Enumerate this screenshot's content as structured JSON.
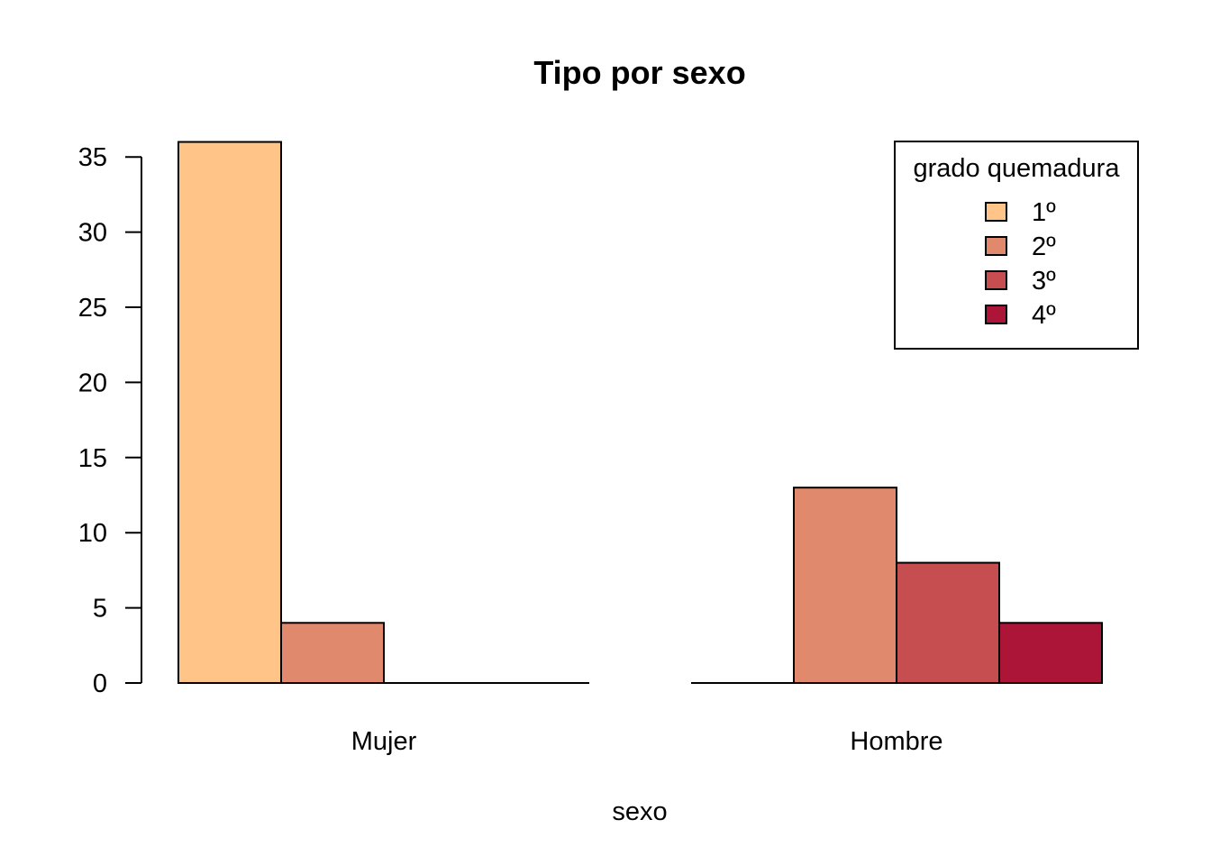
{
  "chart_data": {
    "type": "bar",
    "title": "Tipo por sexo",
    "xlabel": "sexo",
    "ylabel": "",
    "ylim": [
      0,
      36
    ],
    "yticks": [
      0,
      5,
      10,
      15,
      20,
      25,
      30,
      35
    ],
    "categories": [
      "Mujer",
      "Hombre"
    ],
    "legend": {
      "title": "grado quemadura",
      "position": "top-right"
    },
    "series": [
      {
        "name": "1º",
        "color": "#FEC488",
        "values": [
          36,
          0
        ]
      },
      {
        "name": "2º",
        "color": "#E1896C",
        "values": [
          4,
          13
        ]
      },
      {
        "name": "3º",
        "color": "#C64E51",
        "values": [
          0,
          8
        ]
      },
      {
        "name": "4º",
        "color": "#AC1538",
        "values": [
          0,
          4
        ]
      }
    ]
  }
}
